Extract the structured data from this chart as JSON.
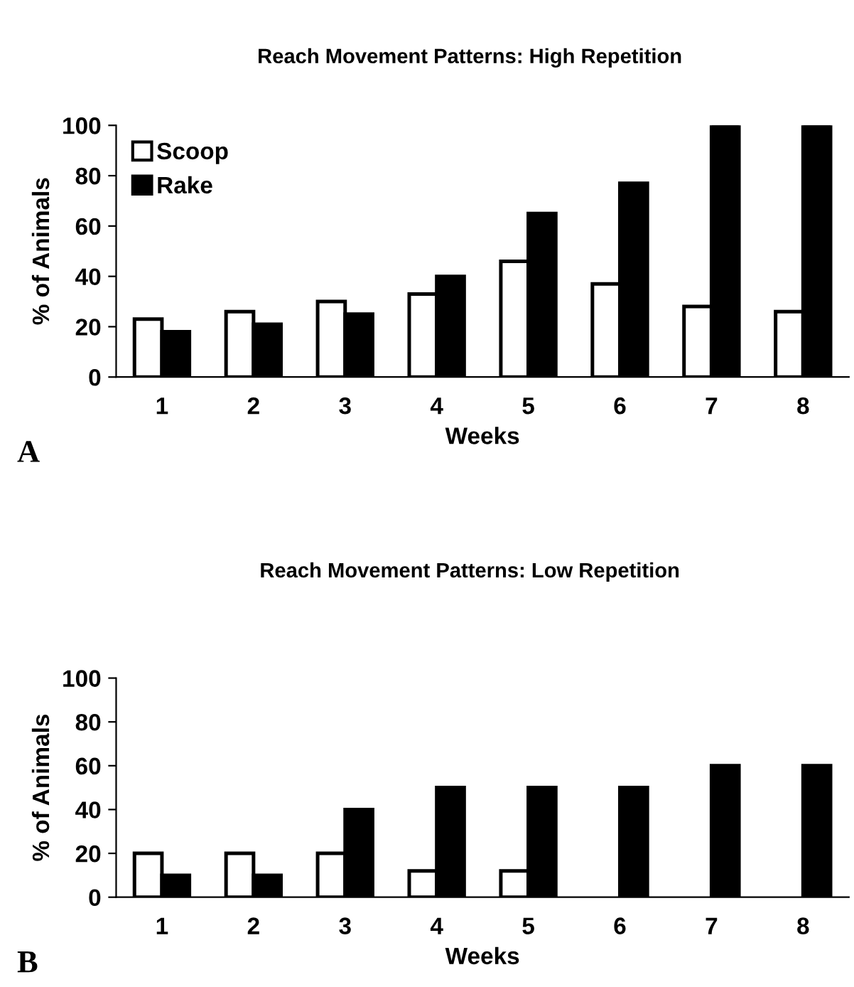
{
  "chart_data": [
    {
      "type": "bar",
      "title": "Reach Movement Patterns: High Repetition",
      "xlabel": "Weeks",
      "ylabel": "% of Animals",
      "categories": [
        "1",
        "2",
        "3",
        "4",
        "5",
        "6",
        "7",
        "8"
      ],
      "series": [
        {
          "name": "Scoop",
          "color": "#ffffff",
          "values": [
            23,
            26,
            30,
            33,
            46,
            37,
            28,
            26
          ]
        },
        {
          "name": "Rake",
          "color": "#000000",
          "values": [
            18,
            21,
            25,
            40,
            65,
            77,
            100,
            100
          ]
        }
      ],
      "ylim": [
        0,
        100
      ],
      "yticks": [
        0,
        20,
        40,
        60,
        80,
        100
      ],
      "legend": "top left",
      "grid": false,
      "annotations": [
        "A"
      ]
    },
    {
      "type": "bar",
      "title": "Reach Movement Patterns: Low Repetition",
      "xlabel": "Weeks",
      "ylabel": "% of Animals",
      "categories": [
        "1",
        "2",
        "3",
        "4",
        "5",
        "6",
        "7",
        "8"
      ],
      "series": [
        {
          "color": "#ffffff",
          "values": [
            20,
            20,
            20,
            12,
            12,
            null,
            null,
            null
          ]
        },
        {
          "color": "#000000",
          "values": [
            10,
            10,
            40,
            50,
            50,
            50,
            60,
            60
          ]
        }
      ],
      "ylim": [
        0,
        100
      ],
      "yticks": [
        0,
        20,
        40,
        60,
        80,
        100
      ],
      "grid": false,
      "annotations": [
        "B"
      ]
    }
  ]
}
